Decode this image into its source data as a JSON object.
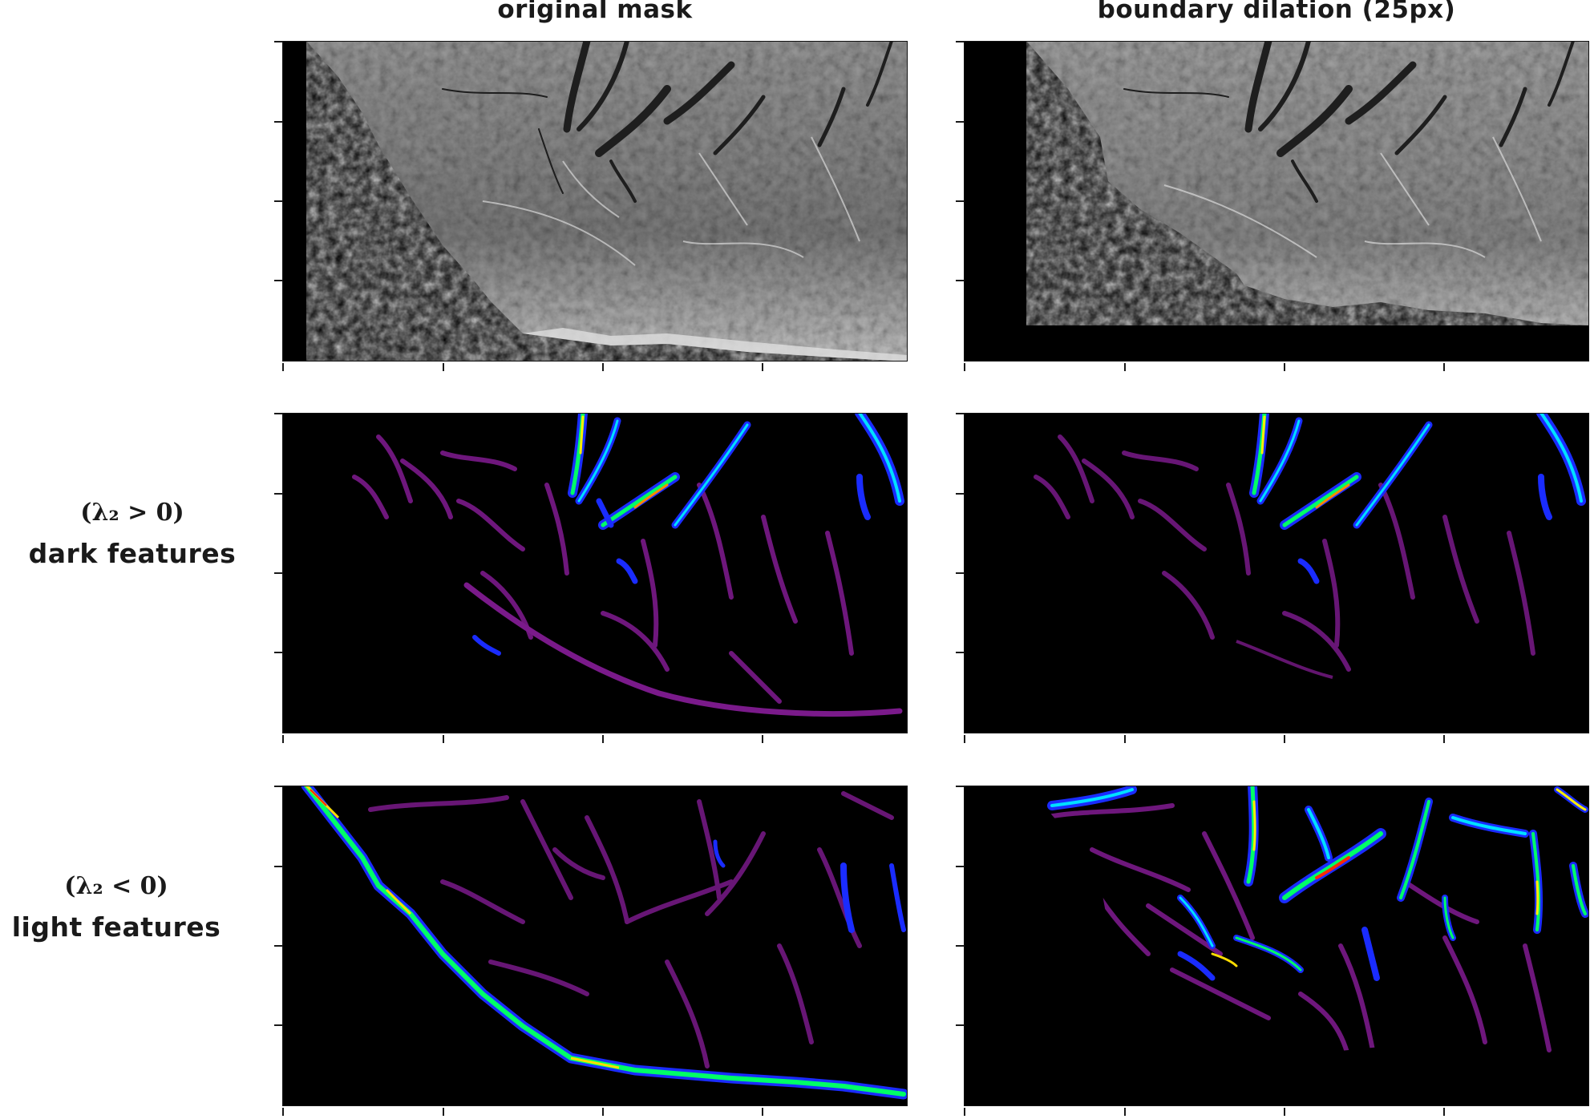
{
  "columns": {
    "left_title": "original mask",
    "right_title": "boundary dilation (25px)"
  },
  "rows": {
    "dark": {
      "math": "(λ₂ > 0)",
      "name": "dark features"
    },
    "light": {
      "math": "(λ₂ < 0)",
      "name": "light features"
    }
  },
  "panels": [
    {
      "name": "original-intensity-panel",
      "content": "grayscale-intensity"
    },
    {
      "name": "dilated-intensity-panel",
      "content": "grayscale-intensity"
    },
    {
      "name": "original-dark-features-panel",
      "content": "ridge-response"
    },
    {
      "name": "dilated-dark-features-panel",
      "content": "ridge-response"
    },
    {
      "name": "original-light-features-panel",
      "content": "ridge-response"
    },
    {
      "name": "dilated-light-features-panel",
      "content": "ridge-response"
    }
  ],
  "colors": {
    "background": "#000000",
    "vessel_low": "#8a1a9a",
    "vessel_mid": "#1a2cff",
    "vessel_high": "#00ff66",
    "vessel_peak": "#ff2a00"
  }
}
